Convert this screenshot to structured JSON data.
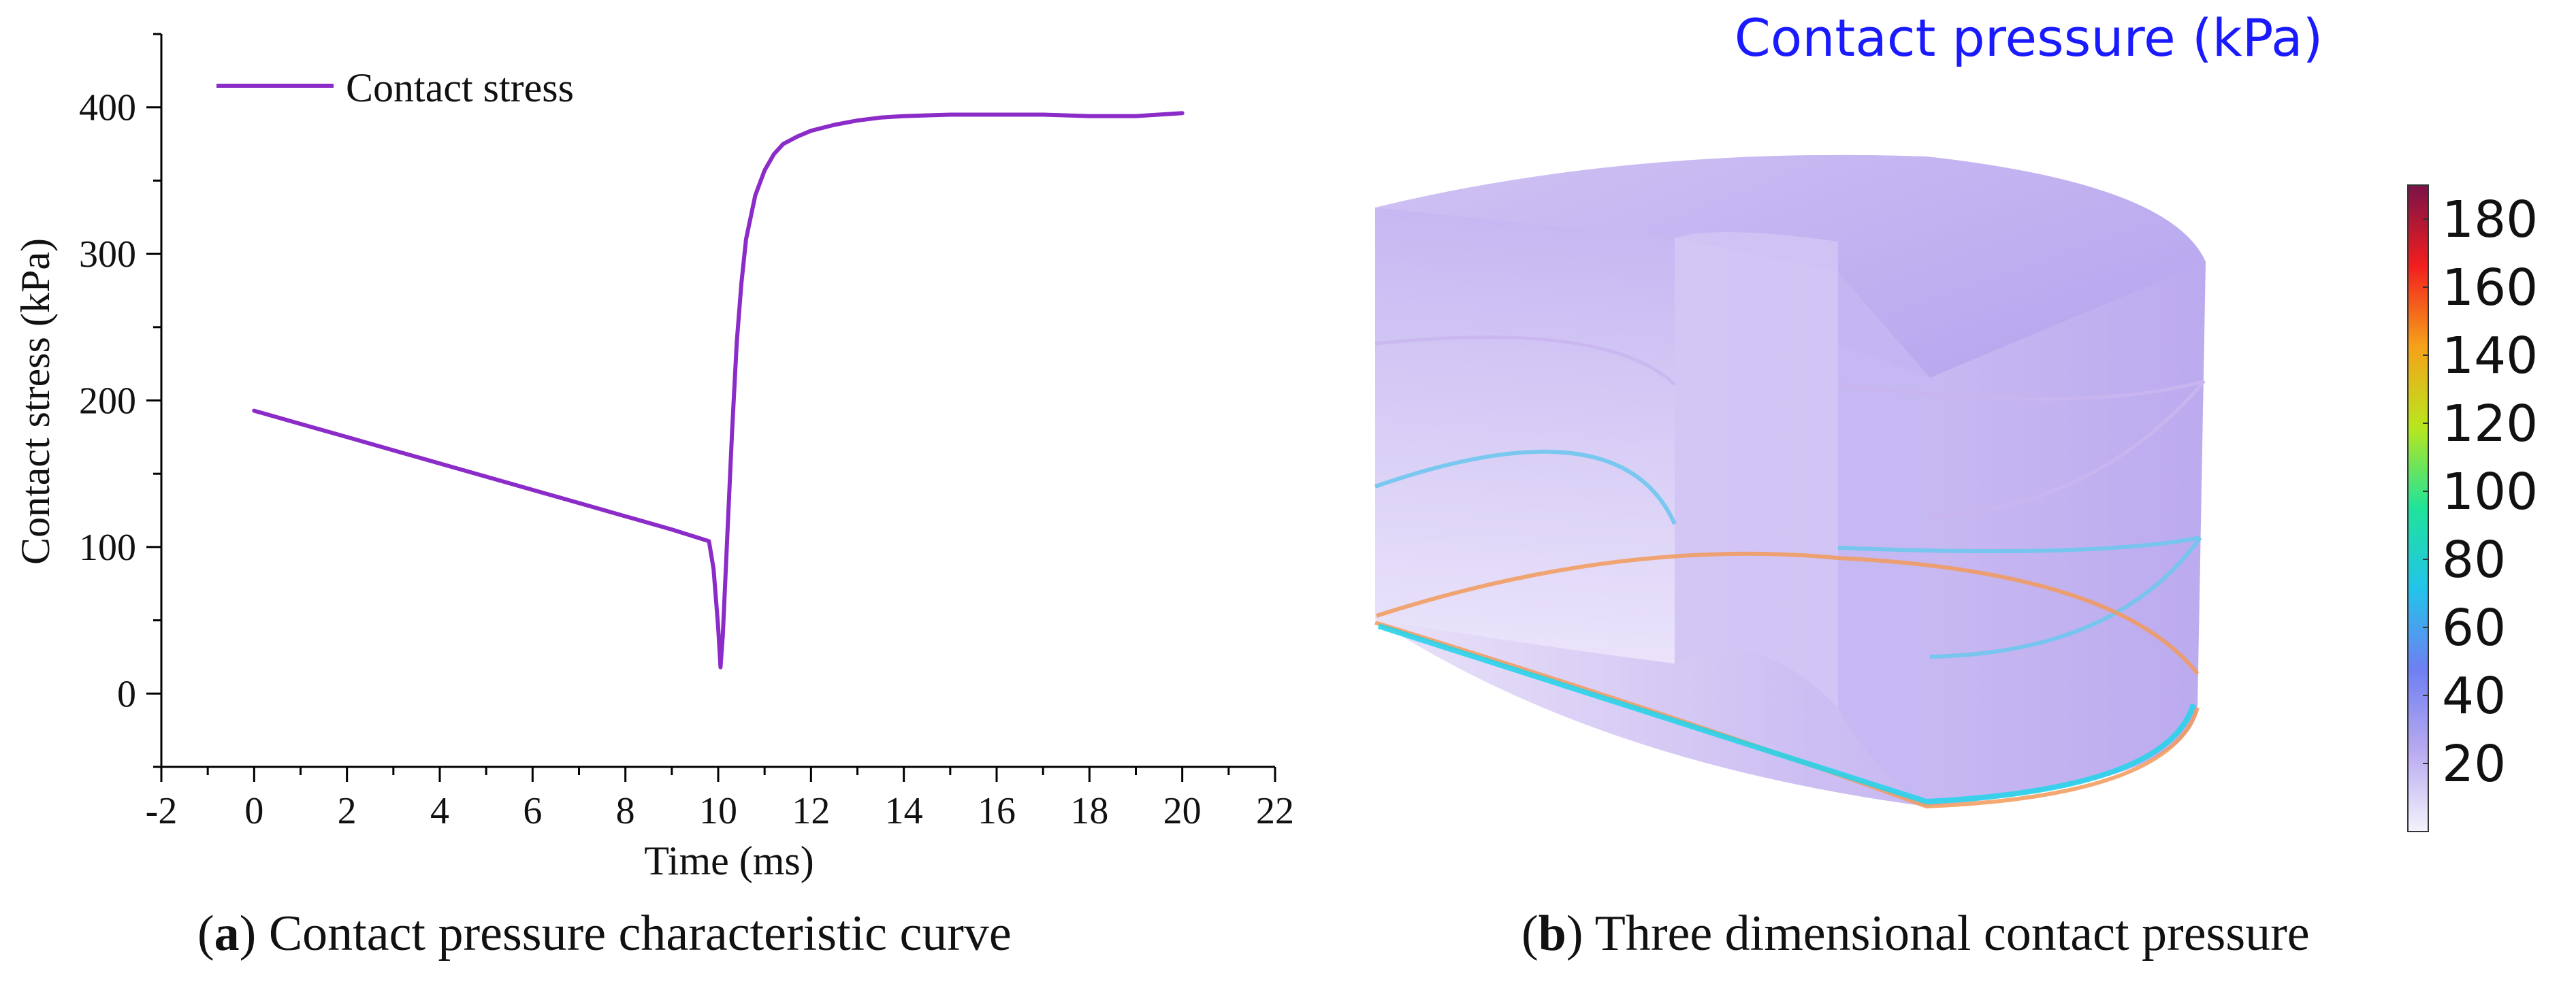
{
  "chart_data": [
    {
      "type": "line",
      "title": "",
      "xlabel": "Time (ms)",
      "ylabel": "Contact stress (kPa)",
      "xlim": [
        -2,
        22
      ],
      "ylim": [
        -50,
        450
      ],
      "xticks": [
        -2,
        0,
        2,
        4,
        6,
        8,
        10,
        12,
        14,
        16,
        18,
        20,
        22
      ],
      "yticks": [
        0,
        100,
        200,
        300,
        400
      ],
      "grid": false,
      "legend_position": "top-left",
      "colors": {
        "series": "#8B2BC8",
        "axis": "#000000"
      },
      "series": [
        {
          "name": "Contact stress",
          "x": [
            0,
            1,
            2,
            3,
            4,
            5,
            6,
            7,
            8,
            9,
            9.8,
            9.9,
            10.0,
            10.05,
            10.1,
            10.2,
            10.3,
            10.4,
            10.5,
            10.6,
            10.8,
            11.0,
            11.2,
            11.4,
            11.7,
            12.0,
            12.5,
            13.0,
            13.5,
            14.0,
            15.0,
            16.0,
            17.0,
            18.0,
            19.0,
            20.0
          ],
          "y": [
            193,
            184,
            175,
            166,
            157,
            148,
            139,
            130,
            121,
            112,
            104,
            85,
            45,
            18,
            40,
            110,
            180,
            240,
            280,
            310,
            340,
            357,
            368,
            375,
            380,
            384,
            388,
            391,
            393,
            394,
            395,
            395,
            395,
            394,
            394,
            396
          ]
        }
      ]
    },
    {
      "type": "heatmap",
      "title": "Contact pressure (kPa)",
      "colorbar": {
        "ticks": [
          20,
          40,
          60,
          80,
          100,
          120,
          140,
          160,
          180
        ],
        "range": [
          0,
          190
        ],
        "colors": [
          "#f4f2fb",
          "#b9aaf0",
          "#6f7ff2",
          "#23c3ea",
          "#1fe39a",
          "#b8e61e",
          "#f5a21a",
          "#f21e1e",
          "#7a1248"
        ]
      },
      "title_color": "#1a1aff"
    }
  ],
  "captions": {
    "a_label": "a",
    "a_text": " Contact pressure characteristic curve",
    "b_label": "b",
    "b_text": " Three dimensional contact pressure"
  }
}
